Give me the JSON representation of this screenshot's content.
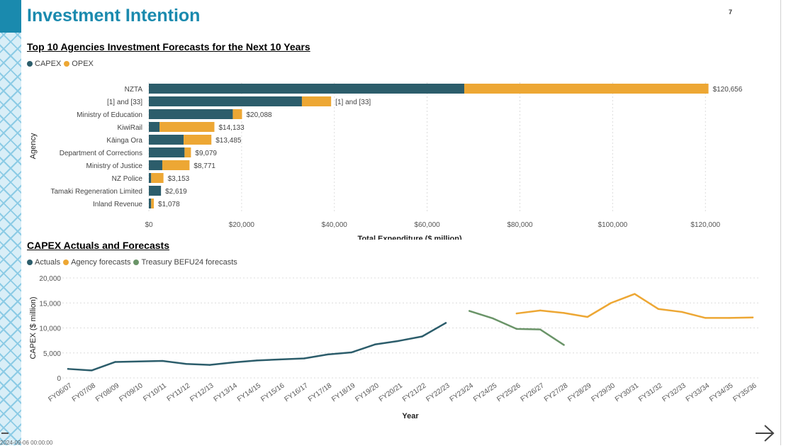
{
  "page": {
    "title": "Investment Intention",
    "page_number": "7",
    "footer_stamp": "2024-09-06 00:00:00"
  },
  "colors": {
    "capex": "#2c5d6b",
    "opex": "#eda734",
    "actuals": "#2c5d6b",
    "agency_forecasts": "#eda734",
    "treasury": "#6a9468",
    "title": "#1a8aae"
  },
  "icons": {
    "next": "arrow-right-icon"
  },
  "chart_data": [
    {
      "type": "bar",
      "orientation": "horizontal",
      "stacked": true,
      "title": "Top 10 Agencies Investment Forecasts for the Next 10 Years",
      "xlabel": "Total Expenditure ($ million)",
      "ylabel": "Agency",
      "xlim": [
        0,
        125000
      ],
      "xticks": [
        0,
        20000,
        40000,
        60000,
        80000,
        100000,
        120000
      ],
      "xtick_labels": [
        "$0",
        "$20,000",
        "$40,000",
        "$60,000",
        "$80,000",
        "$100,000",
        "$120,000"
      ],
      "legend": [
        "CAPEX",
        "OPEX"
      ],
      "legend_position": "top-left",
      "grid": true,
      "categories": [
        "NZTA",
        "[1] and [33]",
        "Ministry of Education",
        "KiwiRail",
        "Kāinga Ora",
        "Department of Corrections",
        "Ministry of Justice",
        "NZ Police",
        "Tamaki Regeneration Limited",
        "Inland Revenue"
      ],
      "series": [
        {
          "name": "CAPEX",
          "values": [
            68000,
            33000,
            18100,
            2300,
            7500,
            7700,
            2900,
            500,
            2619,
            500
          ]
        },
        {
          "name": "OPEX",
          "values": [
            52656,
            6300,
            1988,
            11833,
            5985,
            1379,
            5871,
            2653,
            0,
            578
          ]
        }
      ],
      "data_labels": [
        "$120,656",
        "[1] and [33]",
        "$20,088",
        "$14,133",
        "$13,485",
        "$9,079",
        "$8,771",
        "$3,153",
        "$2,619",
        "$1,078"
      ]
    },
    {
      "type": "line",
      "title": "CAPEX Actuals and Forecasts",
      "xlabel": "Year",
      "ylabel": "CAPEX ($ million)",
      "ylim": [
        0,
        20000
      ],
      "yticks": [
        0,
        5000,
        10000,
        15000,
        20000
      ],
      "ytick_labels": [
        "0",
        "5,000",
        "10,000",
        "15,000",
        "20,000"
      ],
      "legend": [
        "Actuals",
        "Agency forecasts",
        "Treasury BEFU24 forecasts"
      ],
      "legend_position": "top-left",
      "grid": true,
      "x": [
        "FY06/07",
        "FY07/08",
        "FY08/09",
        "FY09/10",
        "FY10/11",
        "FY11/12",
        "FY12/13",
        "FY13/14",
        "FY14/15",
        "FY15/16",
        "FY16/17",
        "FY17/18",
        "FY18/19",
        "FY19/20",
        "FY20/21",
        "FY21/22",
        "FY22/23",
        "FY23/24",
        "FY24/25",
        "FY25/26",
        "FY26/27",
        "FY27/28",
        "FY28/29",
        "FY29/30",
        "FY30/31",
        "FY31/32",
        "FY32/33",
        "FY33/34",
        "FY34/35",
        "FY35/36"
      ],
      "series": [
        {
          "name": "Actuals",
          "values": [
            1800,
            1500,
            3200,
            3300,
            3400,
            2800,
            2600,
            3100,
            3500,
            3700,
            3900,
            4700,
            5100,
            6700,
            7400,
            8300,
            11000,
            null,
            null,
            null,
            null,
            null,
            null,
            null,
            null,
            null,
            null,
            null,
            null,
            null
          ]
        },
        {
          "name": "Agency forecasts",
          "values": [
            null,
            null,
            null,
            null,
            null,
            null,
            null,
            null,
            null,
            null,
            null,
            null,
            null,
            null,
            null,
            null,
            null,
            null,
            null,
            12900,
            13500,
            13000,
            12200,
            15000,
            16800,
            13800,
            13200,
            12000,
            12000,
            12100
          ]
        },
        {
          "name": "Treasury BEFU24 forecasts",
          "values": [
            null,
            null,
            null,
            null,
            null,
            null,
            null,
            null,
            null,
            null,
            null,
            null,
            null,
            null,
            null,
            null,
            null,
            13400,
            11900,
            9800,
            9700,
            6600,
            null,
            null,
            null,
            null,
            null,
            null,
            null,
            null
          ]
        }
      ]
    }
  ]
}
